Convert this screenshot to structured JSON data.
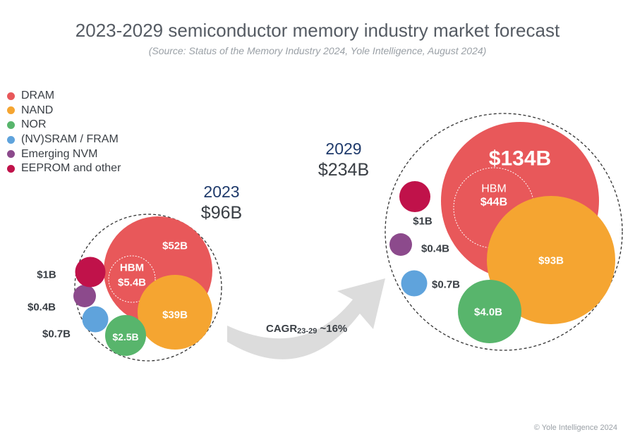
{
  "chart_data": {
    "type": "bubble",
    "title": "2023-2029 semiconductor memory industry market forecast",
    "subtitle": "(Source: Status of the Memory Industry 2024, Yole Intelligence, August 2024)",
    "legend": [
      {
        "name": "DRAM",
        "color": "#e8585a"
      },
      {
        "name": "NAND",
        "color": "#f5a531"
      },
      {
        "name": "NOR",
        "color": "#58b56c"
      },
      {
        "name": "(NV)SRAM / FRAM",
        "color": "#5fa3dc"
      },
      {
        "name": "Emerging NVM",
        "color": "#8c4a8c"
      },
      {
        "name": "EEPROM and other",
        "color": "#c0124a"
      }
    ],
    "years": [
      {
        "year": "2023",
        "total": "$96B",
        "segments": [
          {
            "name": "DRAM",
            "label": "$52B",
            "value": 52
          },
          {
            "name": "NAND",
            "label": "$39B",
            "value": 39
          },
          {
            "name": "NOR",
            "label": "$2.5B",
            "value": 2.5
          },
          {
            "name": "(NV)SRAM / FRAM",
            "label": "$0.7B",
            "value": 0.7
          },
          {
            "name": "Emerging NVM",
            "label": "$0.4B",
            "value": 0.4
          },
          {
            "name": "EEPROM and other",
            "label": "$1B",
            "value": 1
          }
        ],
        "hbm": {
          "label": "HBM",
          "value_label": "$5.4B",
          "value": 5.4
        }
      },
      {
        "year": "2029",
        "total": "$234B",
        "segments": [
          {
            "name": "DRAM",
            "label": "$134B",
            "value": 134
          },
          {
            "name": "NAND",
            "label": "$93B",
            "value": 93
          },
          {
            "name": "NOR",
            "label": "$4.0B",
            "value": 4.0
          },
          {
            "name": "(NV)SRAM / FRAM",
            "label": "$0.7B",
            "value": 0.7
          },
          {
            "name": "Emerging NVM",
            "label": "$0.4B",
            "value": 0.4
          },
          {
            "name": "EEPROM and other",
            "label": "$1B",
            "value": 1
          }
        ],
        "hbm": {
          "label": "HBM",
          "value_label": "$44B",
          "value": 44
        }
      }
    ],
    "cagr": {
      "prefix": "CAGR",
      "subscript": "23-29",
      "value": "~16%"
    }
  },
  "copyright": "© Yole Intelligence 2024"
}
